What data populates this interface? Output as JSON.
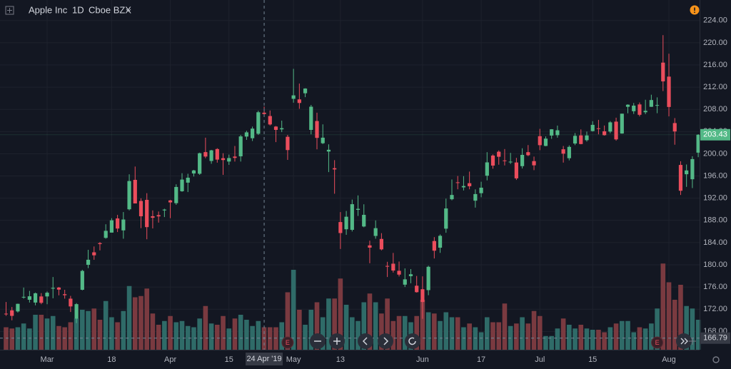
{
  "chart_data": {
    "type": "candlestick",
    "title": "Apple Inc",
    "interval": "1D",
    "exchange": "Cboe BZX",
    "x": [
      "2019-02-20",
      "2019-02-21",
      "2019-02-22",
      "2019-02-25",
      "2019-02-26",
      "2019-02-27",
      "2019-02-28",
      "2019-03-01",
      "2019-03-04",
      "2019-03-05",
      "2019-03-06",
      "2019-03-07",
      "2019-03-08",
      "2019-03-11",
      "2019-03-12",
      "2019-03-13",
      "2019-03-14",
      "2019-03-15",
      "2019-03-18",
      "2019-03-19",
      "2019-03-20",
      "2019-03-21",
      "2019-03-22",
      "2019-03-25",
      "2019-03-26",
      "2019-03-27",
      "2019-03-28",
      "2019-03-29",
      "2019-04-01",
      "2019-04-02",
      "2019-04-03",
      "2019-04-04",
      "2019-04-05",
      "2019-04-08",
      "2019-04-09",
      "2019-04-10",
      "2019-04-11",
      "2019-04-12",
      "2019-04-15",
      "2019-04-16",
      "2019-04-17",
      "2019-04-18",
      "2019-04-22",
      "2019-04-23",
      "2019-04-24",
      "2019-04-25",
      "2019-04-26",
      "2019-04-29",
      "2019-04-30",
      "2019-05-01",
      "2019-05-02",
      "2019-05-03",
      "2019-05-06",
      "2019-05-07",
      "2019-05-08",
      "2019-05-09",
      "2019-05-10",
      "2019-05-13",
      "2019-05-14",
      "2019-05-15",
      "2019-05-16",
      "2019-05-17",
      "2019-05-20",
      "2019-05-21",
      "2019-05-22",
      "2019-05-23",
      "2019-05-24",
      "2019-05-28",
      "2019-05-29",
      "2019-05-30",
      "2019-05-31",
      "2019-06-03",
      "2019-06-04",
      "2019-06-05",
      "2019-06-06",
      "2019-06-07",
      "2019-06-10",
      "2019-06-11",
      "2019-06-12",
      "2019-06-13",
      "2019-06-14",
      "2019-06-17",
      "2019-06-18",
      "2019-06-19",
      "2019-06-20",
      "2019-06-21",
      "2019-06-24",
      "2019-06-25",
      "2019-06-26",
      "2019-06-27",
      "2019-06-28",
      "2019-07-01",
      "2019-07-02",
      "2019-07-03",
      "2019-07-05",
      "2019-07-08",
      "2019-07-09",
      "2019-07-10",
      "2019-07-11",
      "2019-07-12",
      "2019-07-15",
      "2019-07-16",
      "2019-07-17",
      "2019-07-18",
      "2019-07-19",
      "2019-07-22",
      "2019-07-23",
      "2019-07-24",
      "2019-07-25",
      "2019-07-26",
      "2019-07-29",
      "2019-07-30",
      "2019-07-31",
      "2019-08-01",
      "2019-08-02",
      "2019-08-05",
      "2019-08-06",
      "2019-08-07",
      "2019-08-08"
    ],
    "open": [
      171.2,
      171.8,
      171.6,
      174.2,
      173.7,
      173.2,
      174.3,
      174.3,
      175.7,
      175.9,
      174.7,
      173.9,
      170.3,
      175.5,
      180,
      182.25,
      183.9,
      184.85,
      185.8,
      188.35,
      186.2,
      190,
      195.3,
      191.5,
      191.7,
      188.75,
      188.95,
      189.8,
      191.6,
      191.1,
      193.25,
      194.8,
      196.45,
      196.4,
      200.3,
      198.7,
      200.85,
      199.2,
      198.6,
      199.5,
      199.54,
      203.1,
      202.8,
      203.6,
      207.4,
      206.8,
      204.9,
      204.4,
      203.06,
      209.9,
      209.8,
      210.9,
      204.3,
      205.9,
      201.9,
      200.4,
      197.4,
      187.7,
      186.4,
      186.3,
      189.9,
      186.9,
      183.5,
      185.2,
      184.66,
      179.8,
      180.2,
      178.92,
      176.42,
      177.95,
      176.23,
      175.6,
      175.44,
      184.28,
      183.08,
      186.51,
      191.81,
      194.86,
      193.95,
      194.7,
      191.55,
      192.9,
      196.05,
      199.68,
      200.37,
      198.8,
      198.54,
      198.43,
      197.77,
      200.29,
      198.68,
      203.17,
      201.41,
      203.28,
      203.35,
      200.81,
      199.2,
      201.85,
      203.31,
      202.45,
      204.09,
      204.59,
      204.05,
      204,
      205.79,
      203.65,
      208.46,
      207.67,
      208.89,
      207.48,
      208.46,
      208.76,
      216.42,
      213.9,
      205.53,
      197.99,
      196.31,
      195.41,
      200.2
    ],
    "high": [
      173.3,
      172.4,
      173,
      175.9,
      175.3,
      175,
      174.9,
      175.2,
      177.8,
      176,
      175.5,
      174.4,
      173.1,
      179.1,
      182.7,
      183.3,
      184.1,
      187.3,
      188.4,
      188.99,
      189.5,
      196.3,
      197.7,
      191.98,
      192.9,
      189.8,
      189.6,
      190.1,
      191.7,
      194.5,
      196.5,
      196.4,
      197.1,
      200.2,
      202.9,
      200.7,
      201,
      200.1,
      199.85,
      201.4,
      203.4,
      204.15,
      204.9,
      207.75,
      208.5,
      207.8,
      205,
      205.97,
      203.4,
      215.3,
      212.65,
      211.8,
      208.8,
      207.4,
      205.3,
      201.7,
      198.85,
      189.5,
      189.7,
      191.75,
      192.5,
      190.9,
      184.35,
      188,
      185.7,
      180.54,
      182.14,
      180.59,
      179.35,
      179.23,
      177.99,
      177.92,
      179.83,
      184.99,
      185.47,
      191.92,
      195.37,
      196,
      195.97,
      196.79,
      193.59,
      194.96,
      200.29,
      199.88,
      200.61,
      200.85,
      200.16,
      199.26,
      200.99,
      201.57,
      199.49,
      204.49,
      203.13,
      204.44,
      205.08,
      201.4,
      201.51,
      203.73,
      204.39,
      204,
      205.87,
      206.11,
      205.09,
      205.88,
      206.5,
      207.23,
      208.91,
      209.15,
      209.24,
      209.73,
      210.64,
      210.16,
      221.37,
      218.03,
      206.43,
      198.65,
      198.07,
      199.56,
      203.53
    ],
    "low": [
      170.8,
      170,
      171.4,
      173.9,
      173.2,
      172.7,
      172.9,
      172.9,
      173.97,
      174.5,
      173.9,
      171.5,
      169.5,
      175.4,
      179.4,
      180.9,
      182.6,
      184.7,
      185.8,
      185.9,
      184.7,
      189.8,
      191.3,
      186.6,
      184.6,
      186.55,
      187.6,
      188.6,
      188.4,
      190.8,
      193.15,
      193.1,
      195.9,
      196.2,
      199.2,
      198.2,
      198.4,
      196.2,
      198,
      198.6,
      198.6,
      202.5,
      202.3,
      203.4,
      206.9,
      205.1,
      202.1,
      203.9,
      198.9,
      209.2,
      208.1,
      210.2,
      203.5,
      200.8,
      201.75,
      196.7,
      192.8,
      182.85,
      185.4,
      186,
      188.8,
      186.76,
      180.28,
      184.7,
      182.6,
      177.8,
      178.6,
      177.9,
      176,
      176.67,
      174.99,
      170.27,
      174.52,
      181.14,
      182.15,
      185.77,
      191.62,
      193.6,
      193.39,
      193.6,
      190.3,
      192.17,
      195.21,
      197.31,
      198.03,
      197.9,
      198.17,
      195.29,
      197.35,
      199.57,
      197.05,
      200.65,
      201.36,
      202.69,
      202.9,
      198.41,
      198.81,
      201.56,
      201.71,
      202.2,
      204,
      203.5,
      203.27,
      203.7,
      202.36,
      203.61,
      207.29,
      207.17,
      206.73,
      207.14,
      208.44,
      207.31,
      211.3,
      206.74,
      201.63,
      192.58,
      194.04,
      193.82,
      199.39
    ],
    "close": [
      171.1,
      170.8,
      172.97,
      174.23,
      174.33,
      174.87,
      173.15,
      174.97,
      175.85,
      175.53,
      174.52,
      172.5,
      172.91,
      178.9,
      180.91,
      181.71,
      183.73,
      186.12,
      188.02,
      186.53,
      188.16,
      195.09,
      191.05,
      188.74,
      186.79,
      188.47,
      188.72,
      189.95,
      191.24,
      194.02,
      195.35,
      195.69,
      197,
      200.1,
      199.5,
      200.62,
      198.95,
      198.87,
      199.23,
      199.25,
      203.13,
      203.86,
      204.53,
      207.48,
      207.16,
      205.28,
      204.3,
      204.61,
      200.67,
      210.52,
      209.15,
      211.75,
      208.48,
      202.86,
      202.9,
      200.72,
      197.18,
      185.72,
      188.66,
      190.92,
      190.08,
      189,
      183.09,
      186.6,
      182.78,
      179.66,
      178.97,
      178.23,
      177.38,
      178.3,
      175.07,
      173.3,
      179.64,
      182.54,
      185.22,
      190.15,
      192.58,
      194.81,
      194.19,
      194.15,
      192.74,
      193.89,
      198.45,
      197.87,
      199.46,
      198.78,
      198.58,
      195.57,
      199.8,
      199.74,
      197.92,
      201.55,
      202.73,
      204.41,
      204.23,
      200.02,
      201.24,
      203.23,
      201.75,
      203.3,
      205.21,
      204.5,
      203.35,
      205.66,
      202.59,
      207.22,
      208.84,
      208.67,
      207.02,
      207.74,
      209.68,
      208.78,
      213.04,
      208.43,
      204.02,
      193.34,
      197,
      199.04,
      203.43
    ],
    "volume": [
      18,
      17,
      18,
      21,
      17,
      28,
      28,
      25,
      27,
      19,
      18,
      22,
      25,
      32,
      31,
      33,
      24,
      39,
      26,
      22,
      31,
      51,
      42,
      43,
      49,
      29,
      20,
      23,
      27,
      22,
      23,
      19,
      18,
      25,
      35,
      21,
      20,
      27,
      17,
      25,
      28,
      24,
      19,
      23,
      18,
      18,
      18,
      22,
      46,
      64,
      32,
      20,
      32,
      38,
      26,
      41,
      41,
      57,
      36,
      26,
      23,
      38,
      45,
      38,
      29,
      41,
      23,
      27,
      27,
      22,
      27,
      40,
      30,
      29,
      23,
      30,
      26,
      26,
      18,
      21,
      18,
      14,
      26,
      22,
      22,
      37,
      19,
      21,
      26,
      21,
      31,
      27,
      11,
      11,
      17,
      25,
      20,
      17,
      20,
      17,
      16,
      16,
      14,
      18,
      21,
      23,
      23,
      14,
      18,
      17,
      21,
      33,
      69,
      54,
      40,
      52,
      35,
      33,
      24
    ],
    "volume_lim": [
      0,
      280
    ],
    "up_color": "#53b987",
    "down_color": "#eb4d5c",
    "volume_up_color": "#2f6b68",
    "volume_down_color": "#7a3a40",
    "ylim": [
      164.7,
      227.7
    ],
    "yticks": [
      {
        "value": 168,
        "label": "168.00"
      },
      {
        "value": 172,
        "label": "172.00"
      },
      {
        "value": 176,
        "label": "176.00"
      },
      {
        "value": 180,
        "label": "180.00"
      },
      {
        "value": 184,
        "label": "184.00"
      },
      {
        "value": 188,
        "label": "188.00"
      },
      {
        "value": 192,
        "label": "192.00"
      },
      {
        "value": 196,
        "label": "196.00"
      },
      {
        "value": 200,
        "label": "200.00"
      },
      {
        "value": 204,
        "label": "204.00"
      },
      {
        "value": 208,
        "label": "208.00"
      },
      {
        "value": 212,
        "label": "212.00"
      },
      {
        "value": 216,
        "label": "216.00"
      },
      {
        "value": 220,
        "label": "220.00"
      },
      {
        "value": 224,
        "label": "224.00"
      }
    ],
    "xticks": [
      {
        "value": "2019-03-01",
        "label": "Mar"
      },
      {
        "value": "2019-03-18",
        "label": "18"
      },
      {
        "value": "2019-04-01",
        "label": "Apr"
      },
      {
        "value": "2019-04-15",
        "label": "15"
      },
      {
        "value": "2019-05-01",
        "label": "May"
      },
      {
        "value": "2019-05-13",
        "label": "13"
      },
      {
        "value": "2019-06-03",
        "label": "Jun"
      },
      {
        "value": "2019-06-17",
        "label": "17"
      },
      {
        "value": "2019-07-01",
        "label": "Jul"
      },
      {
        "value": "2019-07-15",
        "label": "15"
      },
      {
        "value": "2019-08-01",
        "label": "Aug"
      }
    ],
    "grid": true,
    "last_price": 203.43,
    "crosshair": {
      "date": "2019-04-24",
      "date_label": "24 Apr '19",
      "price": 166.79
    },
    "events": [
      {
        "label": "E",
        "date": "2019-04-30"
      },
      {
        "label": "E",
        "date": "2019-07-30"
      }
    ]
  }
}
